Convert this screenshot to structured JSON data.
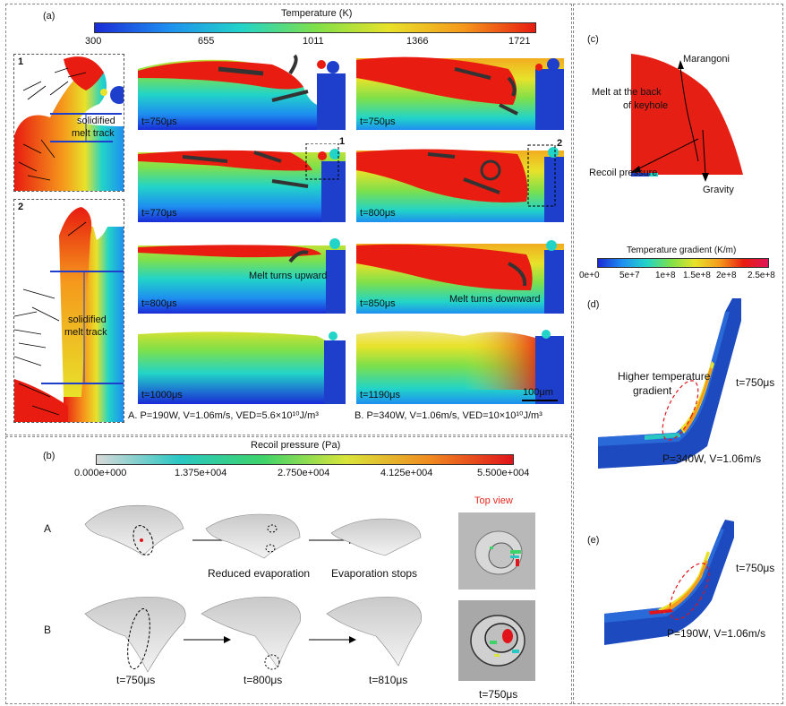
{
  "panel_labels": {
    "a": "(a)",
    "b": "(b)",
    "c": "(c)",
    "d": "(d)",
    "e": "(e)"
  },
  "temperature_bar": {
    "title": "Temperature (K)",
    "ticks": [
      "300",
      "655",
      "1011",
      "1366",
      "1721"
    ]
  },
  "insets": {
    "one": {
      "number": "1",
      "label_line1": "solidified",
      "label_line2": "melt track"
    },
    "two": {
      "number": "2",
      "label_line1": "solidified",
      "label_line2": "melt track"
    }
  },
  "column_a": {
    "times": [
      "t=750μs",
      "t=770μs",
      "t=800μs",
      "t=1000μs"
    ],
    "callout": "1",
    "annotation": "Melt turns upward",
    "caption": "A. P=190W, V=1.06m/s, VED=5.6×10¹⁰J/m³"
  },
  "column_b": {
    "times": [
      "t=750μs",
      "t=800μs",
      "t=850μs",
      "t=1190μs"
    ],
    "callout": "2",
    "annotation": "Melt turns downward",
    "scale": "100μm",
    "caption": "B. P=340W, V=1.06m/s, VED=10×10¹⁰J/m³"
  },
  "panel_c": {
    "marangoni": "Marangoni",
    "melt_back_1": "Melt at the back",
    "melt_back_2": "of keyhole",
    "recoil": "Recoil pressure",
    "gravity": "Gravity"
  },
  "gradient_bar": {
    "title": "Temperature gradient (K/m)",
    "ticks": [
      "0e+0",
      "5e+7",
      "1e+8",
      "1.5e+8",
      "2e+8",
      "2.5e+8"
    ]
  },
  "panel_d": {
    "note_1": "Higher temperature",
    "note_2": "gradient",
    "time": "t=750μs",
    "params": "P=340W, V=1.06m/s"
  },
  "panel_e": {
    "time": "t=750μs",
    "params": "P=190W, V=1.06m/s"
  },
  "recoil_bar": {
    "title": "Recoil pressure (Pa)",
    "ticks": [
      "0.000e+000",
      "1.375e+004",
      "2.750e+004",
      "4.125e+004",
      "5.500e+004"
    ]
  },
  "panel_b": {
    "row_a": "A",
    "row_b": "B",
    "top_view": "Top view",
    "reduced": "Reduced  evaporation",
    "stops": "Evaporation stops",
    "times": [
      "t=750μs",
      "t=800μs",
      "t=810μs"
    ],
    "top_time": "t=750μs"
  },
  "colors": {
    "temp_gradient": [
      "#1a2bd6",
      "#1e8ff0",
      "#22d4c8",
      "#7ee04a",
      "#e8e22a",
      "#f59a1c",
      "#e81c10"
    ],
    "recoil_gradient": [
      "#d9d9d9",
      "#29c7c2",
      "#3ed36a",
      "#d9e53a",
      "#f08a20",
      "#e0141a"
    ],
    "solid": "#1d3fcc",
    "melt": "#e51f14",
    "top_view_label": "#e8281e"
  }
}
